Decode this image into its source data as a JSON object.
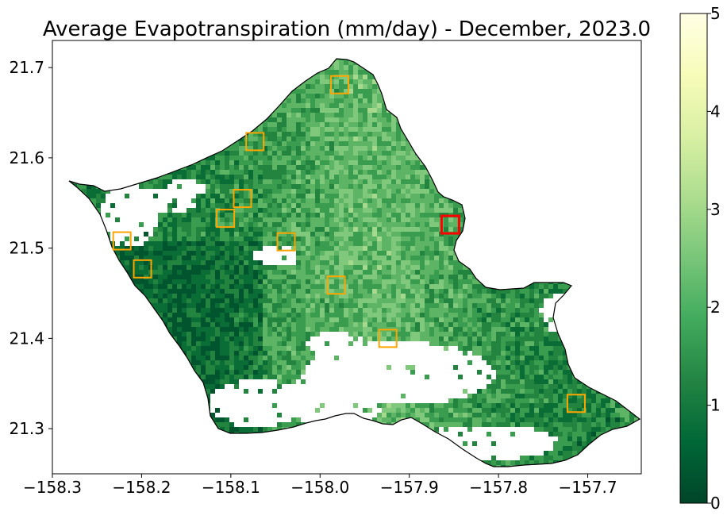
{
  "title": "Average Evapotranspiration (mm/day) - December, 2023.0",
  "x_ticks": [
    {
      "value": -158.3,
      "label": "−158.3"
    },
    {
      "value": -158.2,
      "label": "−158.2"
    },
    {
      "value": -158.1,
      "label": "−158.1"
    },
    {
      "value": -158.0,
      "label": "−158.0"
    },
    {
      "value": -157.9,
      "label": "−157.9"
    },
    {
      "value": -157.8,
      "label": "−157.8"
    },
    {
      "value": -157.7,
      "label": "−157.7"
    }
  ],
  "y_ticks": [
    {
      "value": 21.3,
      "label": "21.3"
    },
    {
      "value": 21.4,
      "label": "21.4"
    },
    {
      "value": 21.5,
      "label": "21.5"
    },
    {
      "value": 21.6,
      "label": "21.6"
    },
    {
      "value": 21.7,
      "label": "21.7"
    }
  ],
  "colorbar": {
    "ticks": [
      {
        "value": 0,
        "label": "0"
      },
      {
        "value": 1,
        "label": "1"
      },
      {
        "value": 2,
        "label": "2"
      },
      {
        "value": 3,
        "label": "3"
      },
      {
        "value": 4,
        "label": "4"
      },
      {
        "value": 5,
        "label": "5"
      }
    ],
    "colors": [
      "#004529",
      "#006837",
      "#238443",
      "#41ab5d",
      "#78c679",
      "#addd8e",
      "#d9f0a3",
      "#f7fcb9",
      "#ffffe5"
    ]
  },
  "map": {
    "xlim": [
      -158.3,
      -157.64
    ],
    "ylim": [
      21.25,
      21.73
    ],
    "markers": [
      {
        "lon": -157.978,
        "lat": 21.681,
        "color": "#FFA500"
      },
      {
        "lon": -158.073,
        "lat": 21.618,
        "color": "#FFA500"
      },
      {
        "lon": -158.087,
        "lat": 21.555,
        "color": "#FFA500"
      },
      {
        "lon": -158.106,
        "lat": 21.533,
        "color": "#FFA500"
      },
      {
        "lon": -158.222,
        "lat": 21.508,
        "color": "#FFA500"
      },
      {
        "lon": -158.038,
        "lat": 21.507,
        "color": "#FFA500"
      },
      {
        "lon": -158.199,
        "lat": 21.477,
        "color": "#FFA500"
      },
      {
        "lon": -157.982,
        "lat": 21.459,
        "color": "#FFA500"
      },
      {
        "lon": -157.924,
        "lat": 21.4,
        "color": "#FFA500"
      },
      {
        "lon": -157.713,
        "lat": 21.328,
        "color": "#FFA500"
      },
      {
        "lon": -157.854,
        "lat": 21.526,
        "color": "#FF0000"
      }
    ]
  }
}
